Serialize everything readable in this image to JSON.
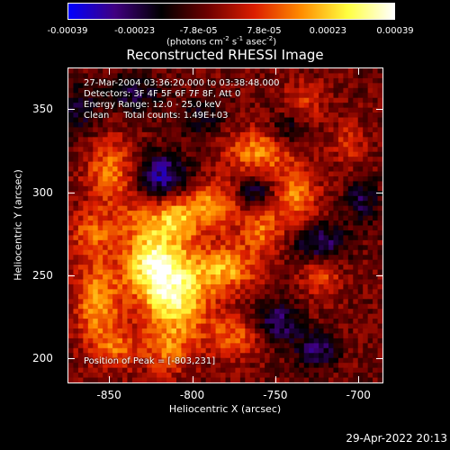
{
  "colorbar": {
    "ticks": [
      "-0.00039",
      "-0.00023",
      "-7.8e-05",
      "7.8e-05",
      "0.00023",
      "0.00039"
    ],
    "unit_prefix": "(photons cm",
    "unit_sup1": "-2",
    "unit_mid1": " s",
    "unit_sup2": "-1",
    "unit_mid2": " asec",
    "unit_sup3": "-2",
    "unit_suffix": ")",
    "colors": [
      "#0000ff",
      "#400080",
      "#000000",
      "#6e0000",
      "#dc1e00",
      "#ff8c00",
      "#ffff40",
      "#ffffff"
    ]
  },
  "image_title": "Reconstructed RHESSI Image",
  "info": {
    "time": "27-Mar-2004 03:36:20.000 to 03:38:48.000",
    "detectors": "Detectors: 3F 4F 5F 6F 7F 8F, Att 0",
    "energy": "Energy Range: 12.0 - 25.0 keV",
    "clean": "Clean     Total counts: 1.49E+03"
  },
  "peak_label": "Position of Peak = [-803,231]",
  "axes": {
    "xlabel": "Heliocentric X (arcsec)",
    "ylabel": "Heliocentric Y (arcsec)",
    "xticks": [
      "-850",
      "-800",
      "-750",
      "-700"
    ],
    "yticks": [
      "350",
      "300",
      "250",
      "200"
    ]
  },
  "date_stamp": "29-Apr-2022 20:13",
  "chart_data": {
    "type": "heatmap",
    "title": "Reconstructed RHESSI Image",
    "xlabel": "Heliocentric X (arcsec)",
    "ylabel": "Heliocentric Y (arcsec)",
    "xlim": [
      -875,
      -685
    ],
    "ylim": [
      185,
      375
    ],
    "colorbar_range": [
      -0.00039,
      0.00039
    ],
    "peak": [
      -803,
      231
    ],
    "grid": false,
    "blobs": [
      {
        "x": -810,
        "y": 238,
        "sx": 14,
        "sy": 20,
        "v": 0.00036
      },
      {
        "x": -826,
        "y": 257,
        "sx": 11,
        "sy": 14,
        "v": 0.0003
      },
      {
        "x": -810,
        "y": 284,
        "sx": 10,
        "sy": 10,
        "v": 0.00026
      },
      {
        "x": -779,
        "y": 254,
        "sx": 13,
        "sy": 10,
        "v": 0.00024
      },
      {
        "x": -786,
        "y": 292,
        "sx": 11,
        "sy": 10,
        "v": 0.00023
      },
      {
        "x": -760,
        "y": 324,
        "sx": 14,
        "sy": 10,
        "v": 0.00022
      },
      {
        "x": -738,
        "y": 298,
        "sx": 10,
        "sy": 12,
        "v": 0.00021
      },
      {
        "x": -758,
        "y": 278,
        "sx": 9,
        "sy": 10,
        "v": 0.00019
      },
      {
        "x": -848,
        "y": 312,
        "sx": 11,
        "sy": 14,
        "v": 0.00022
      },
      {
        "x": -860,
        "y": 276,
        "sx": 10,
        "sy": 10,
        "v": 0.00017
      },
      {
        "x": -857,
        "y": 234,
        "sx": 10,
        "sy": 18,
        "v": 0.00024
      },
      {
        "x": -845,
        "y": 205,
        "sx": 10,
        "sy": 9,
        "v": 0.00015
      },
      {
        "x": -722,
        "y": 252,
        "sx": 9,
        "sy": 11,
        "v": 0.00016
      },
      {
        "x": -775,
        "y": 212,
        "sx": 11,
        "sy": 9,
        "v": 0.00017
      },
      {
        "x": -732,
        "y": 355,
        "sx": 9,
        "sy": 9,
        "v": 0.00012
      },
      {
        "x": -832,
        "y": 283,
        "sx": 9,
        "sy": 9,
        "v": 0.00013
      },
      {
        "x": -815,
        "y": 202,
        "sx": 9,
        "sy": 9,
        "v": 0.00014
      },
      {
        "x": -705,
        "y": 330,
        "sx": 8,
        "sy": 10,
        "v": 0.00011
      },
      {
        "x": -820,
        "y": 310,
        "sx": 12,
        "sy": 10,
        "v": -0.00025
      },
      {
        "x": -762,
        "y": 300,
        "sx": 9,
        "sy": 8,
        "v": -0.00018
      },
      {
        "x": -722,
        "y": 268,
        "sx": 11,
        "sy": 9,
        "v": -0.00024
      },
      {
        "x": -748,
        "y": 222,
        "sx": 9,
        "sy": 9,
        "v": -0.0002
      },
      {
        "x": -725,
        "y": 205,
        "sx": 9,
        "sy": 8,
        "v": -0.00019
      },
      {
        "x": -835,
        "y": 360,
        "sx": 11,
        "sy": 8,
        "v": -0.00016
      },
      {
        "x": -795,
        "y": 345,
        "sx": 10,
        "sy": 8,
        "v": -0.00012
      },
      {
        "x": -697,
        "y": 295,
        "sx": 7,
        "sy": 10,
        "v": -0.00016
      },
      {
        "x": -868,
        "y": 350,
        "sx": 8,
        "sy": 12,
        "v": -0.00013
      },
      {
        "x": -742,
        "y": 338,
        "sx": 8,
        "sy": 8,
        "v": -0.00013
      }
    ]
  }
}
